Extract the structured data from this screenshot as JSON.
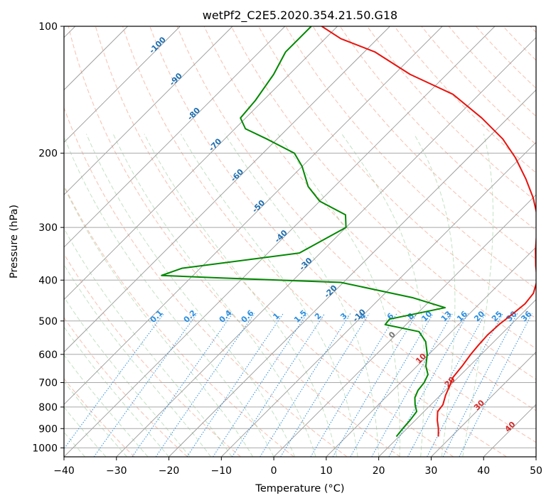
{
  "chart_data": {
    "type": "line",
    "title": "wetPf2_C2E5.2020.354.21.50.G18",
    "xlabel": "Temperature (°C)",
    "ylabel": "Pressure (hPa)",
    "xlim": [
      -40,
      50
    ],
    "ylim": [
      1050,
      100
    ],
    "y_scale": "log",
    "skew": "45-degree skewed isotherms",
    "x_ticks": [
      "−40",
      "−30",
      "−20",
      "−10",
      "0",
      "10",
      "20",
      "30",
      "40",
      "50"
    ],
    "y_ticks": [
      "100",
      "200",
      "300",
      "400",
      "500",
      "600",
      "700",
      "800",
      "900",
      "1000"
    ],
    "grid": true,
    "series": [
      {
        "color": "#e8120c",
        "x": [
          27.5,
          26.0,
          24.2,
          22.6,
          22.3,
          21.0,
          20.2,
          19.0,
          18.6,
          18.0,
          17.7,
          17.5,
          17.7,
          18.3,
          18.7,
          18.3,
          16.5,
          13.5,
          10.5,
          7.5,
          4.0,
          0.0,
          -5.0,
          -11.0,
          -17.0,
          -25.0,
          -35.0,
          -47.0,
          -58.0,
          -67.0,
          -73.0
        ],
        "y": [
          940,
          900,
          860,
          820,
          790,
          750,
          720,
          680,
          640,
          600,
          570,
          540,
          510,
          480,
          455,
          430,
          400,
          370,
          340,
          310,
          280,
          255,
          230,
          205,
          185,
          165,
          145,
          130,
          115,
          107,
          100
        ]
      },
      {
        "color": "#008800",
        "x": [
          19.5,
          19.2,
          19.0,
          18.6,
          17.0,
          15.6,
          14.8,
          14.5,
          13.7,
          11.7,
          9.7,
          7.0,
          3.8,
          -4.0,
          -4.2,
          4.2,
          -4.0,
          -20.5,
          -45.0,
          -56.0,
          -53.5,
          -34.0,
          -30.0,
          -32.5,
          -40.0,
          -45.0,
          -50.0,
          -54.0,
          -62.0,
          -68.0,
          -71.0,
          -71.5,
          -73.0,
          -75.0,
          -75.0
        ],
        "y": [
          940,
          900,
          860,
          820,
          790,
          760,
          730,
          700,
          670,
          640,
          600,
          560,
          530,
          510,
          495,
          465,
          440,
          405,
          395,
          390,
          375,
          345,
          300,
          280,
          260,
          240,
          215,
          200,
          185,
          175,
          165,
          150,
          130,
          115,
          100
        ]
      }
    ],
    "dry_adiabat_labels": [
      "-100",
      "-90",
      "-80",
      "-70",
      "-60",
      "-50",
      "-40",
      "-30",
      "-20",
      "-10",
      "0",
      "10",
      "20",
      "30",
      "40"
    ],
    "mixing_ratio_labels": [
      "0.1",
      "0.2",
      "0.4",
      "0.6",
      "1",
      "1.5",
      "2",
      "3",
      "4",
      "6",
      "8",
      "10",
      "13",
      "16",
      "20",
      "25",
      "30",
      "36"
    ]
  }
}
